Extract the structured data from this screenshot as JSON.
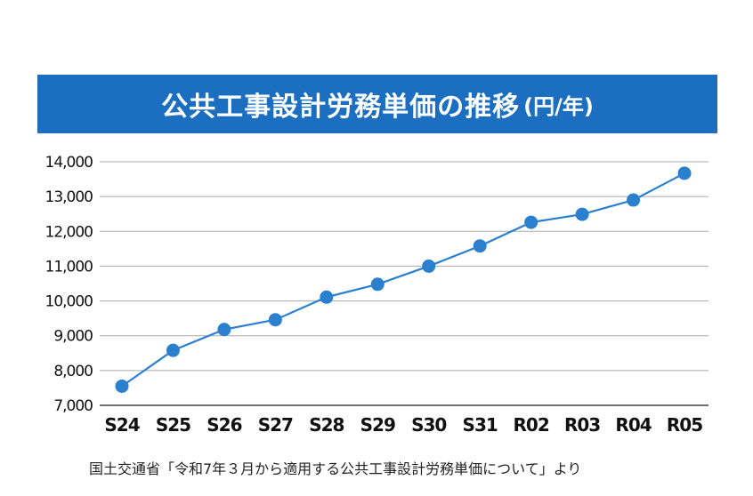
{
  "chart_data": {
    "type": "line",
    "title": "公共工事設計労務単価の推移",
    "unit_label": "(円/年)",
    "categories": [
      "S24",
      "S25",
      "S26",
      "S27",
      "S28",
      "S29",
      "S30",
      "S31",
      "R02",
      "R03",
      "R04",
      "R05"
    ],
    "series": [
      {
        "name": "公共工事設計労務単価",
        "values": [
          7550,
          8580,
          9180,
          9460,
          10110,
          10480,
          11000,
          11580,
          12260,
          12490,
          12900,
          13670
        ]
      }
    ],
    "y_ticks": [
      "7,000",
      "8,000",
      "9,000",
      "10,000",
      "11,000",
      "12,000",
      "13,000",
      "14,000"
    ],
    "ylim": [
      7000,
      14000
    ],
    "grid": true,
    "xlabel": "",
    "ylabel": ""
  },
  "caption": "国土交通省「令和7年３月から適用する公共工事設計労務単価について」より",
  "colors": {
    "title_bg": "#1c6fc0",
    "line": "#2a7fce",
    "grid": "#a8a8a8"
  }
}
